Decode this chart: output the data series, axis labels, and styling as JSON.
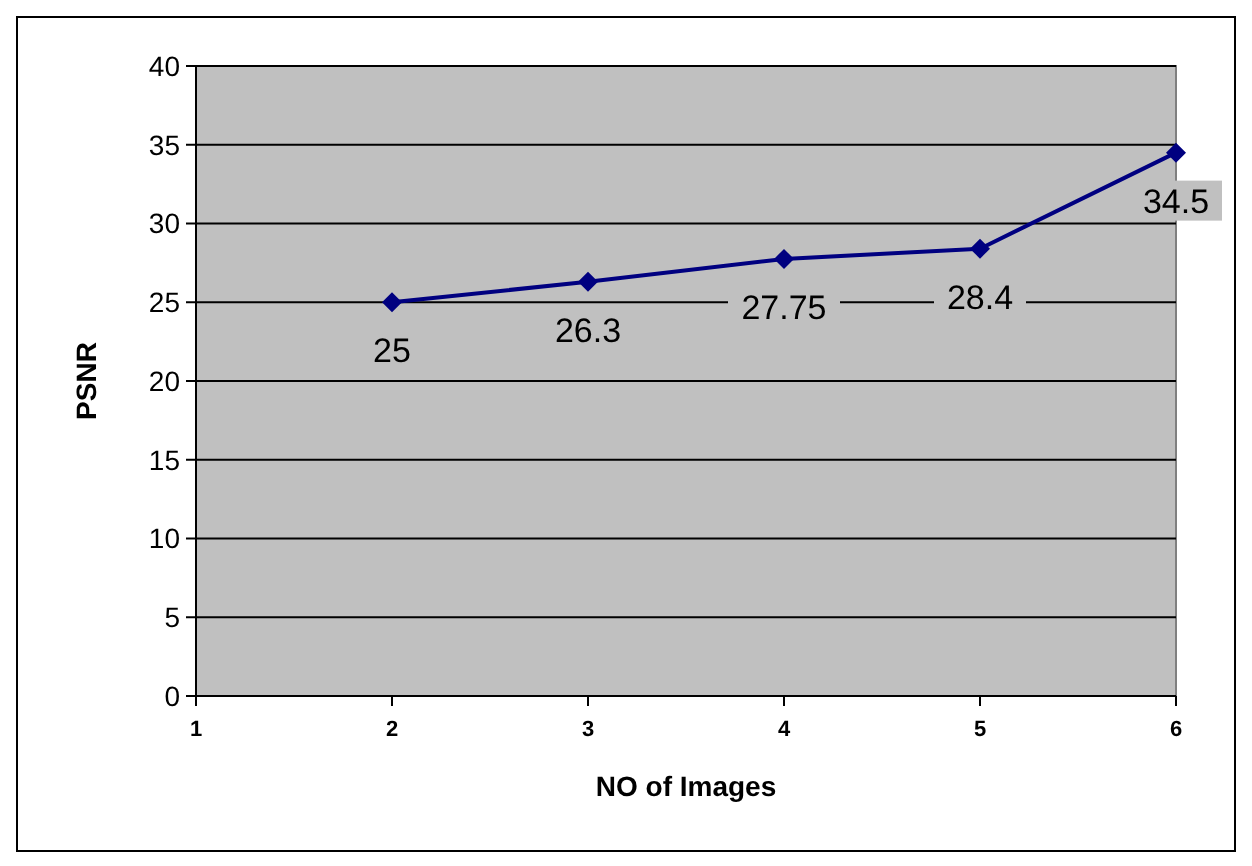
{
  "chart_data": {
    "type": "line",
    "xlabel": "NO of Images",
    "ylabel": "PSNR",
    "x": [
      2,
      3,
      4,
      5,
      6
    ],
    "series": [
      {
        "color": "#000080",
        "values": [
          25,
          26.3,
          27.75,
          28.4,
          34.5
        ]
      }
    ],
    "xlim": [
      1,
      6
    ],
    "xticks": [
      1,
      2,
      3,
      4,
      5,
      6
    ],
    "ylim": [
      0,
      40
    ],
    "yticks": [
      0,
      5,
      10,
      15,
      20,
      25,
      30,
      35,
      40
    ],
    "grid": "y",
    "marker": "diamond",
    "line_style": "solid",
    "data_labels": true
  }
}
